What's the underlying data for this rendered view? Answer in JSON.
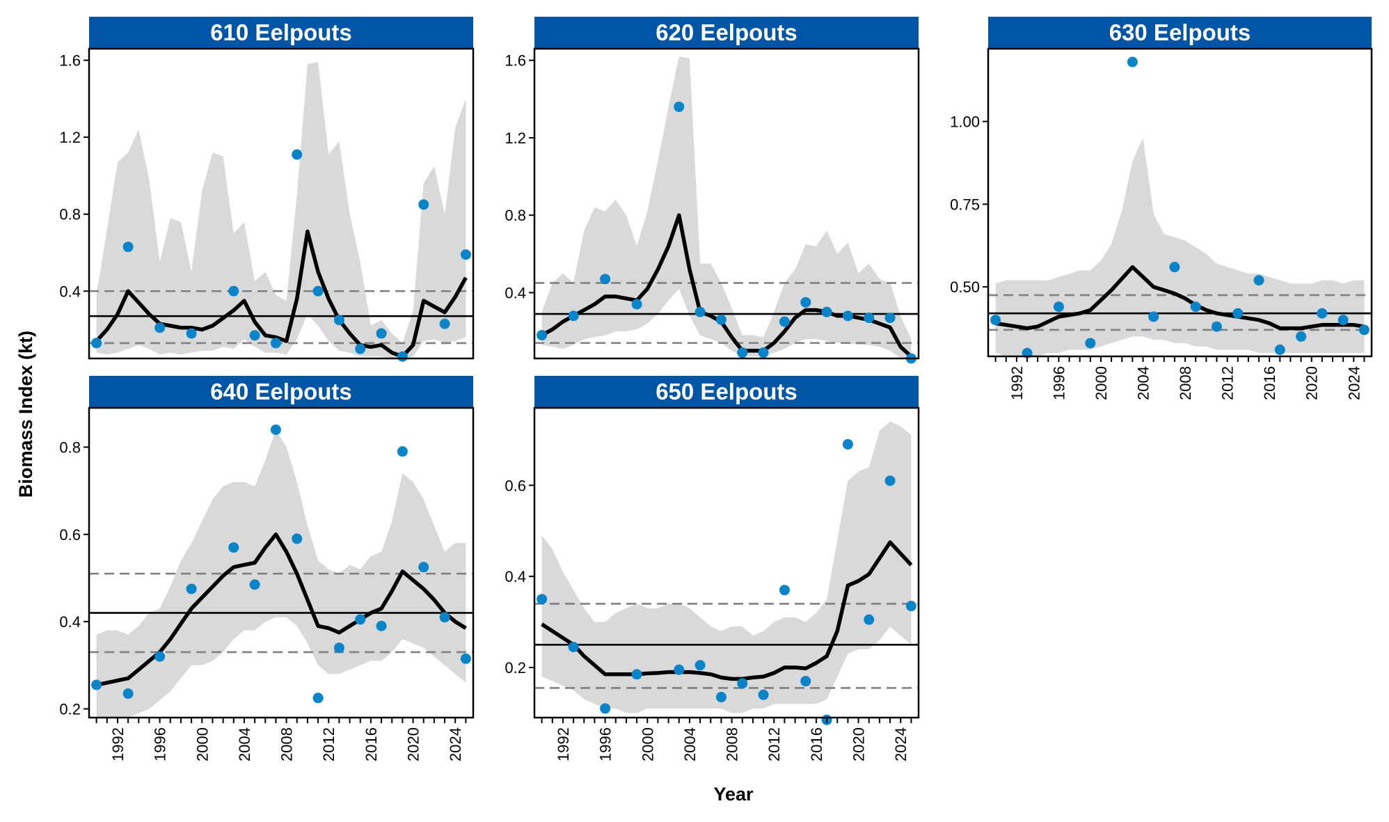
{
  "figure": {
    "ylabel": "Biomass Index (kt)",
    "xlabel": "Year"
  },
  "colors": {
    "strip": "#0055A6",
    "strip_text": "#ffffff",
    "points": "#0A84C8",
    "ribbon": "#D9D9D9",
    "fit_line": "#000000",
    "mean_line": "#000000",
    "quantile_line": "#808080"
  },
  "chart_data": [
    {
      "type": "line",
      "title": "610 Eelpouts",
      "mean": 0.27,
      "quantiles": [
        0.13,
        0.4
      ],
      "ylim": [
        0.05,
        1.66
      ],
      "yticks": [
        "0.4",
        "0.8",
        "1.2",
        "1.6"
      ],
      "xlim": [
        1989.3,
        2025.7
      ],
      "xticks": [
        "1992",
        "1996",
        "2000",
        "2004",
        "2008",
        "2012",
        "2016",
        "2020",
        "2024"
      ],
      "fit": {
        "x": [
          1990,
          1991,
          1992,
          1993,
          1994,
          1995,
          1996,
          1997,
          1998,
          1999,
          2000,
          2001,
          2002,
          2003,
          2004,
          2005,
          2006,
          2007,
          2008,
          2009,
          2010,
          2011,
          2012,
          2013,
          2014,
          2015,
          2016,
          2017,
          2018,
          2019,
          2020,
          2021,
          2022,
          2023,
          2024,
          2025
        ],
        "y": [
          0.14,
          0.2,
          0.28,
          0.4,
          0.34,
          0.28,
          0.23,
          0.22,
          0.21,
          0.21,
          0.2,
          0.22,
          0.26,
          0.3,
          0.35,
          0.24,
          0.17,
          0.16,
          0.14,
          0.36,
          0.71,
          0.5,
          0.36,
          0.25,
          0.18,
          0.12,
          0.11,
          0.12,
          0.08,
          0.06,
          0.12,
          0.35,
          0.32,
          0.29,
          0.37,
          0.47
        ]
      },
      "ribbon": {
        "lower": [
          0.08,
          0.07,
          0.08,
          0.1,
          0.12,
          0.1,
          0.07,
          0.08,
          0.07,
          0.08,
          0.09,
          0.09,
          0.11,
          0.1,
          0.15,
          0.11,
          0.08,
          0.08,
          0.07,
          0.15,
          0.28,
          0.22,
          0.14,
          0.09,
          0.08,
          0.06,
          0.06,
          0.06,
          0.05,
          0.05,
          0.06,
          0.14,
          0.15,
          0.13,
          0.14,
          0.16
        ],
        "upper": [
          0.38,
          0.72,
          1.07,
          1.12,
          1.24,
          0.98,
          0.55,
          0.78,
          0.76,
          0.5,
          0.92,
          1.12,
          1.1,
          0.7,
          0.76,
          0.45,
          0.5,
          0.38,
          0.35,
          0.9,
          1.58,
          1.59,
          1.11,
          1.18,
          0.8,
          0.55,
          0.22,
          0.25,
          0.18,
          0.13,
          0.3,
          0.96,
          1.05,
          0.8,
          1.25,
          1.4
        ]
      },
      "observed": {
        "x": [
          1990,
          1993,
          1996,
          1999,
          2003,
          2005,
          2007,
          2009,
          2011,
          2013,
          2015,
          2017,
          2019,
          2021,
          2023,
          2025
        ],
        "y": [
          0.13,
          0.63,
          0.21,
          0.18,
          0.4,
          0.17,
          0.13,
          1.11,
          0.4,
          0.25,
          0.1,
          0.18,
          0.06,
          0.85,
          0.23,
          0.59
        ]
      }
    },
    {
      "type": "line",
      "title": "620 Eelpouts",
      "mean": 0.29,
      "quantiles": [
        0.14,
        0.45
      ],
      "ylim": [
        0.06,
        1.66
      ],
      "yticks": [
        "0.4",
        "0.8",
        "1.2",
        "1.6"
      ],
      "xlim": [
        1989.3,
        2025.7
      ],
      "xticks": [
        "1992",
        "1996",
        "2000",
        "2004",
        "2008",
        "2012",
        "2016",
        "2020",
        "2024"
      ],
      "fit": {
        "x": [
          1990,
          1991,
          1992,
          1993,
          1994,
          1995,
          1996,
          1997,
          1998,
          1999,
          2000,
          2001,
          2002,
          2003,
          2004,
          2005,
          2006,
          2007,
          2008,
          2009,
          2010,
          2011,
          2012,
          2013,
          2014,
          2015,
          2016,
          2017,
          2018,
          2019,
          2020,
          2021,
          2022,
          2023,
          2024,
          2025
        ],
        "y": [
          0.18,
          0.21,
          0.25,
          0.28,
          0.31,
          0.34,
          0.38,
          0.38,
          0.37,
          0.36,
          0.42,
          0.52,
          0.64,
          0.8,
          0.52,
          0.3,
          0.28,
          0.25,
          0.17,
          0.1,
          0.1,
          0.1,
          0.14,
          0.2,
          0.27,
          0.31,
          0.31,
          0.3,
          0.28,
          0.28,
          0.27,
          0.26,
          0.24,
          0.22,
          0.12,
          0.07
        ]
      },
      "ribbon": {
        "lower": [
          0.13,
          0.12,
          0.11,
          0.13,
          0.16,
          0.17,
          0.18,
          0.2,
          0.2,
          0.21,
          0.24,
          0.29,
          0.36,
          0.42,
          0.28,
          0.18,
          0.16,
          0.14,
          0.1,
          0.07,
          0.07,
          0.07,
          0.09,
          0.11,
          0.14,
          0.16,
          0.16,
          0.15,
          0.14,
          0.14,
          0.13,
          0.13,
          0.12,
          0.1,
          0.06,
          0.06
        ],
        "upper": [
          0.3,
          0.45,
          0.5,
          0.45,
          0.72,
          0.84,
          0.82,
          0.88,
          0.8,
          0.64,
          0.82,
          1.08,
          1.36,
          1.62,
          1.61,
          0.55,
          0.55,
          0.45,
          0.32,
          0.18,
          0.18,
          0.17,
          0.3,
          0.45,
          0.52,
          0.65,
          0.64,
          0.72,
          0.6,
          0.66,
          0.5,
          0.55,
          0.47,
          0.45,
          0.28,
          0.16
        ]
      },
      "observed": {
        "x": [
          1990,
          1993,
          1996,
          1999,
          2003,
          2005,
          2007,
          2009,
          2011,
          2013,
          2015,
          2017,
          2019,
          2021,
          2023,
          2025
        ],
        "y": [
          0.18,
          0.28,
          0.47,
          0.34,
          1.36,
          0.3,
          0.26,
          0.09,
          0.09,
          0.25,
          0.35,
          0.3,
          0.28,
          0.27,
          0.27,
          0.06
        ]
      }
    },
    {
      "type": "line",
      "title": "630 Eelpouts",
      "mean": 0.42,
      "quantiles": [
        0.37,
        0.475
      ],
      "ylim": [
        0.29,
        1.22
      ],
      "yticks": [
        "0.50",
        "0.75",
        "1.00"
      ],
      "xlim": [
        1989.3,
        2025.7
      ],
      "xticks": [
        "1992",
        "1996",
        "2000",
        "2004",
        "2008",
        "2012",
        "2016",
        "2020",
        "2024"
      ],
      "fit": {
        "x": [
          1990,
          1991,
          1992,
          1993,
          1994,
          1995,
          1996,
          1997,
          1998,
          1999,
          2000,
          2001,
          2002,
          2003,
          2004,
          2005,
          2006,
          2007,
          2008,
          2009,
          2010,
          2011,
          2012,
          2013,
          2014,
          2015,
          2016,
          2017,
          2018,
          2019,
          2020,
          2021,
          2022,
          2023,
          2024,
          2025
        ],
        "y": [
          0.39,
          0.385,
          0.38,
          0.375,
          0.38,
          0.395,
          0.41,
          0.415,
          0.42,
          0.43,
          0.46,
          0.49,
          0.525,
          0.56,
          0.53,
          0.5,
          0.49,
          0.48,
          0.465,
          0.445,
          0.43,
          0.42,
          0.415,
          0.41,
          0.405,
          0.4,
          0.39,
          0.375,
          0.375,
          0.375,
          0.38,
          0.385,
          0.385,
          0.385,
          0.385,
          0.38
        ]
      },
      "ribbon": {
        "lower": [
          0.3,
          0.29,
          0.29,
          0.29,
          0.29,
          0.3,
          0.3,
          0.31,
          0.31,
          0.31,
          0.32,
          0.33,
          0.34,
          0.35,
          0.35,
          0.34,
          0.34,
          0.33,
          0.33,
          0.32,
          0.32,
          0.31,
          0.31,
          0.31,
          0.31,
          0.3,
          0.3,
          0.3,
          0.3,
          0.3,
          0.3,
          0.3,
          0.3,
          0.3,
          0.3,
          0.3
        ],
        "upper": [
          0.51,
          0.52,
          0.52,
          0.52,
          0.52,
          0.52,
          0.53,
          0.54,
          0.55,
          0.55,
          0.58,
          0.63,
          0.73,
          0.88,
          0.95,
          0.72,
          0.66,
          0.65,
          0.64,
          0.62,
          0.6,
          0.57,
          0.56,
          0.55,
          0.54,
          0.54,
          0.53,
          0.52,
          0.51,
          0.51,
          0.51,
          0.52,
          0.52,
          0.51,
          0.52,
          0.52
        ]
      },
      "observed": {
        "x": [
          1990,
          1993,
          1996,
          1999,
          2003,
          2005,
          2007,
          2009,
          2011,
          2013,
          2015,
          2017,
          2019,
          2021,
          2023,
          2025
        ],
        "y": [
          0.4,
          0.3,
          0.44,
          0.33,
          1.18,
          0.41,
          0.56,
          0.44,
          0.38,
          0.42,
          0.52,
          0.31,
          0.35,
          0.42,
          0.4,
          0.37
        ]
      }
    },
    {
      "type": "line",
      "title": "640 Eelpouts",
      "mean": 0.42,
      "quantiles": [
        0.33,
        0.51
      ],
      "ylim": [
        0.18,
        0.89
      ],
      "yticks": [
        "0.2",
        "0.4",
        "0.6",
        "0.8"
      ],
      "xlim": [
        1989.3,
        2025.7
      ],
      "xticks": [
        "1992",
        "1996",
        "2000",
        "2004",
        "2008",
        "2012",
        "2016",
        "2020",
        "2024"
      ],
      "fit": {
        "x": [
          1990,
          1991,
          1992,
          1993,
          1994,
          1995,
          1996,
          1997,
          1998,
          1999,
          2000,
          2001,
          2002,
          2003,
          2004,
          2005,
          2006,
          2007,
          2008,
          2009,
          2010,
          2011,
          2012,
          2013,
          2014,
          2015,
          2016,
          2017,
          2018,
          2019,
          2020,
          2021,
          2022,
          2023,
          2024,
          2025
        ],
        "y": [
          0.255,
          0.26,
          0.265,
          0.27,
          0.29,
          0.31,
          0.33,
          0.36,
          0.395,
          0.43,
          0.455,
          0.48,
          0.505,
          0.525,
          0.53,
          0.535,
          0.57,
          0.6,
          0.56,
          0.51,
          0.45,
          0.39,
          0.385,
          0.375,
          0.39,
          0.405,
          0.42,
          0.43,
          0.47,
          0.515,
          0.495,
          0.475,
          0.45,
          0.42,
          0.4,
          0.385
        ]
      },
      "ribbon": {
        "lower": [
          0.18,
          0.18,
          0.18,
          0.18,
          0.19,
          0.2,
          0.22,
          0.24,
          0.27,
          0.3,
          0.3,
          0.31,
          0.33,
          0.36,
          0.38,
          0.38,
          0.4,
          0.41,
          0.41,
          0.39,
          0.35,
          0.3,
          0.28,
          0.28,
          0.29,
          0.3,
          0.31,
          0.31,
          0.33,
          0.36,
          0.35,
          0.34,
          0.32,
          0.3,
          0.28,
          0.26
        ],
        "upper": [
          0.37,
          0.38,
          0.38,
          0.37,
          0.39,
          0.42,
          0.43,
          0.48,
          0.54,
          0.58,
          0.63,
          0.68,
          0.71,
          0.72,
          0.72,
          0.71,
          0.77,
          0.84,
          0.8,
          0.72,
          0.62,
          0.54,
          0.52,
          0.51,
          0.53,
          0.52,
          0.55,
          0.56,
          0.63,
          0.74,
          0.72,
          0.68,
          0.62,
          0.56,
          0.58,
          0.58
        ]
      },
      "observed": {
        "x": [
          1990,
          1993,
          1996,
          1999,
          2003,
          2005,
          2007,
          2009,
          2011,
          2013,
          2015,
          2017,
          2019,
          2021,
          2023,
          2025
        ],
        "y": [
          0.255,
          0.235,
          0.32,
          0.475,
          0.57,
          0.485,
          0.84,
          0.59,
          0.225,
          0.34,
          0.405,
          0.39,
          0.79,
          0.525,
          0.41,
          0.315
        ]
      }
    },
    {
      "type": "line",
      "title": "650 Eelpouts",
      "mean": 0.25,
      "quantiles": [
        0.155,
        0.34
      ],
      "ylim": [
        0.09,
        0.77
      ],
      "yticks": [
        "0.2",
        "0.4",
        "0.6"
      ],
      "xlim": [
        1989.3,
        2025.7
      ],
      "xticks": [
        "1992",
        "1996",
        "2000",
        "2004",
        "2008",
        "2012",
        "2016",
        "2020",
        "2024"
      ],
      "fit": {
        "x": [
          1990,
          1991,
          1992,
          1993,
          1994,
          1995,
          1996,
          1997,
          1998,
          1999,
          2000,
          2001,
          2002,
          2003,
          2004,
          2005,
          2006,
          2007,
          2008,
          2009,
          2010,
          2011,
          2012,
          2013,
          2014,
          2015,
          2016,
          2017,
          2018,
          2019,
          2020,
          2021,
          2022,
          2023,
          2024,
          2025
        ],
        "y": [
          0.295,
          0.28,
          0.265,
          0.25,
          0.225,
          0.205,
          0.185,
          0.185,
          0.185,
          0.185,
          0.187,
          0.188,
          0.19,
          0.19,
          0.19,
          0.188,
          0.185,
          0.178,
          0.175,
          0.175,
          0.178,
          0.18,
          0.188,
          0.2,
          0.2,
          0.198,
          0.21,
          0.225,
          0.28,
          0.38,
          0.39,
          0.405,
          0.44,
          0.475,
          0.45,
          0.425
        ]
      },
      "ribbon": {
        "lower": [
          0.18,
          0.17,
          0.16,
          0.15,
          0.13,
          0.12,
          0.11,
          0.11,
          0.1,
          0.1,
          0.11,
          0.11,
          0.11,
          0.11,
          0.11,
          0.11,
          0.11,
          0.11,
          0.1,
          0.1,
          0.11,
          0.11,
          0.12,
          0.12,
          0.12,
          0.12,
          0.12,
          0.13,
          0.18,
          0.23,
          0.24,
          0.24,
          0.26,
          0.29,
          0.27,
          0.25
        ],
        "upper": [
          0.49,
          0.46,
          0.41,
          0.37,
          0.33,
          0.3,
          0.3,
          0.32,
          0.33,
          0.34,
          0.33,
          0.33,
          0.34,
          0.34,
          0.33,
          0.31,
          0.29,
          0.28,
          0.29,
          0.29,
          0.27,
          0.28,
          0.3,
          0.31,
          0.31,
          0.3,
          0.32,
          0.35,
          0.48,
          0.61,
          0.63,
          0.64,
          0.72,
          0.74,
          0.73,
          0.71
        ]
      },
      "observed": {
        "x": [
          1990,
          1993,
          1996,
          1999,
          2003,
          2005,
          2007,
          2009,
          2011,
          2013,
          2015,
          2017,
          2019,
          2021,
          2023,
          2025
        ],
        "y": [
          0.35,
          0.245,
          0.11,
          0.185,
          0.195,
          0.205,
          0.135,
          0.165,
          0.14,
          0.37,
          0.17,
          0.085,
          0.69,
          0.305,
          0.61,
          0.335
        ]
      }
    }
  ]
}
